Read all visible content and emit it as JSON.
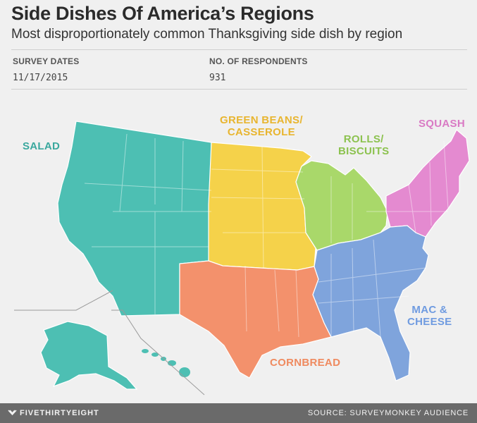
{
  "header": {
    "title": "Side Dishes Of America’s Regions",
    "subtitle": "Most disproportionately common Thanksgiving side dish by region"
  },
  "meta": {
    "survey_dates_label": "SURVEY DATES",
    "survey_dates_value": "11/17/2015",
    "respondents_label": "NO. OF RESPONDENTS",
    "respondents_value": "931"
  },
  "regions": [
    {
      "id": "west",
      "label": "SALAD",
      "color": "#4dbfb3",
      "label_color": "#3aa89e"
    },
    {
      "id": "plains",
      "label": "GREEN BEANS/\nCASSEROLE",
      "color": "#f5d24a",
      "label_color": "#e8b52f"
    },
    {
      "id": "midwest",
      "label": "ROLLS/\nBISCUITS",
      "color": "#a9d86a",
      "label_color": "#8cc24f"
    },
    {
      "id": "northeast",
      "label": "SQUASH",
      "color": "#e48ad0",
      "label_color": "#d97ac4"
    },
    {
      "id": "south",
      "label": "CORNBREAD",
      "color": "#f3916c",
      "label_color": "#ef8a5f"
    },
    {
      "id": "southeast",
      "label": "MAC &\nCHEESE",
      "color": "#7fa4dc",
      "label_color": "#6f9be0"
    }
  ],
  "footer": {
    "brand": "FIVETHIRTYEIGHT",
    "source": "SOURCE: SURVEYMONKEY AUDIENCE"
  }
}
